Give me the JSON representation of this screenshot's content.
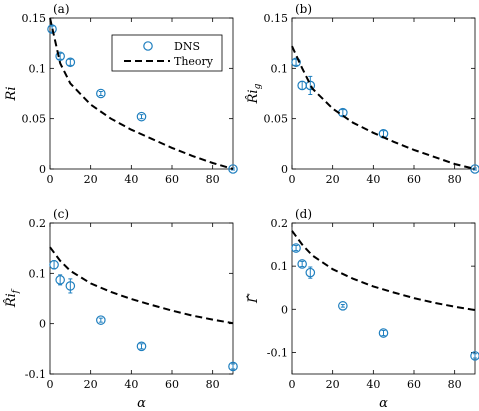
{
  "chart_data": [
    {
      "type": "scatter",
      "panel_label": "(a)",
      "ylabel": "Ri",
      "xlabel": "",
      "xlim": [
        0,
        90
      ],
      "ylim": [
        0,
        0.15
      ],
      "xticks": [
        "0",
        "20",
        "40",
        "60",
        "80"
      ],
      "yticks": [
        "0",
        "0.05",
        "0.1",
        "0.15"
      ],
      "legend": {
        "location": "top-right",
        "entries": [
          "DNS",
          "Theory"
        ]
      },
      "series": [
        {
          "name": "DNS",
          "style": "circle",
          "x": [
            1,
            5,
            10,
            25,
            45,
            90
          ],
          "y": [
            0.139,
            0.112,
            0.106,
            0.075,
            0.052,
            0.0
          ],
          "err": [
            0.003,
            0.003,
            0.003,
            0.002,
            0.002,
            0.001
          ]
        },
        {
          "name": "Theory",
          "style": "dashed",
          "x": [
            0,
            5,
            10,
            20,
            30,
            40,
            50,
            60,
            70,
            80,
            90
          ],
          "y": [
            0.15,
            0.105,
            0.085,
            0.064,
            0.05,
            0.039,
            0.03,
            0.021,
            0.013,
            0.006,
            0.0
          ]
        }
      ]
    },
    {
      "type": "scatter",
      "panel_label": "(b)",
      "ylabel": "R̂i_g",
      "xlabel": "",
      "xlim": [
        0,
        90
      ],
      "ylim": [
        0,
        0.15
      ],
      "xticks": [
        "0",
        "20",
        "40",
        "60",
        "80"
      ],
      "yticks": [
        "0",
        "0.05",
        "0.1",
        "0.15"
      ],
      "series": [
        {
          "name": "DNS",
          "style": "circle",
          "x": [
            2,
            5,
            9,
            25,
            45,
            90
          ],
          "y": [
            0.106,
            0.083,
            0.083,
            0.056,
            0.035,
            0.0
          ],
          "err": [
            0.003,
            0.004,
            0.009,
            0.003,
            0.003,
            0.001
          ]
        },
        {
          "name": "Theory",
          "style": "dashed",
          "x": [
            0,
            5,
            10,
            20,
            30,
            40,
            50,
            60,
            70,
            80,
            90
          ],
          "y": [
            0.122,
            0.1,
            0.08,
            0.06,
            0.046,
            0.036,
            0.027,
            0.019,
            0.012,
            0.005,
            0.0
          ]
        }
      ]
    },
    {
      "type": "scatter",
      "panel_label": "(c)",
      "ylabel": "R̂i_f",
      "xlabel": "α",
      "xlim": [
        0,
        90
      ],
      "ylim": [
        -0.1,
        0.2
      ],
      "xticks": [
        "0",
        "20",
        "40",
        "60",
        "80"
      ],
      "yticks": [
        "-0.1",
        "0",
        "0.1",
        "0.2"
      ],
      "series": [
        {
          "name": "DNS",
          "style": "circle",
          "x": [
            2,
            5,
            10,
            25,
            45,
            90
          ],
          "y": [
            0.117,
            0.087,
            0.075,
            0.007,
            -0.045,
            -0.085
          ],
          "err": [
            0.008,
            0.01,
            0.014,
            0.004,
            0.005,
            0.005
          ]
        },
        {
          "name": "Theory",
          "style": "dashed",
          "x": [
            0,
            5,
            10,
            20,
            30,
            40,
            50,
            60,
            70,
            80,
            90
          ],
          "y": [
            0.152,
            0.125,
            0.105,
            0.08,
            0.063,
            0.049,
            0.037,
            0.026,
            0.016,
            0.008,
            0.001
          ]
        }
      ]
    },
    {
      "type": "scatter",
      "panel_label": "(d)",
      "ylabel": "Γ̂",
      "xlabel": "α",
      "xlim": [
        0,
        90
      ],
      "ylim": [
        -0.15,
        0.2
      ],
      "xticks": [
        "0",
        "20",
        "40",
        "60",
        "80"
      ],
      "yticks": [
        "-0.1",
        "0",
        "0.1",
        "0.2"
      ],
      "series": [
        {
          "name": "DNS",
          "style": "circle",
          "x": [
            2,
            5,
            9,
            25,
            45,
            90
          ],
          "y": [
            0.142,
            0.105,
            0.085,
            0.008,
            -0.055,
            -0.108
          ],
          "err": [
            0.006,
            0.006,
            0.013,
            0.003,
            0.006,
            0.005
          ]
        },
        {
          "name": "Theory",
          "style": "dashed",
          "x": [
            0,
            5,
            10,
            20,
            30,
            40,
            50,
            60,
            70,
            80,
            90
          ],
          "y": [
            0.182,
            0.15,
            0.125,
            0.093,
            0.071,
            0.053,
            0.039,
            0.026,
            0.015,
            0.006,
            -0.002
          ]
        }
      ]
    }
  ],
  "colors": {
    "dns_marker": "#1f7fbf",
    "theory_line": "#000000",
    "axes": "#000000"
  }
}
